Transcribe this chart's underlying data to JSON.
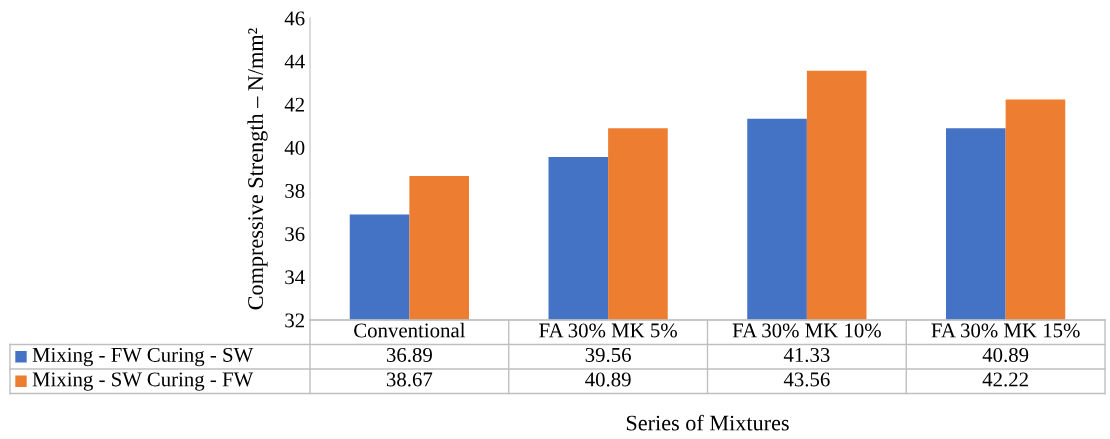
{
  "chart_data": {
    "type": "bar",
    "xlabel": "Series of Mixtures",
    "ylabel": "Compressive Strength – N/mm²",
    "categories": [
      "Conventional",
      "FA 30% MK 5%",
      "FA 30% MK 10%",
      "FA 30% MK 15%"
    ],
    "series": [
      {
        "name": "Mixing - FW Curing - SW",
        "color": "#4472c4",
        "values": [
          36.89,
          39.56,
          41.33,
          40.89
        ]
      },
      {
        "name": "Mixing - SW Curing - FW",
        "color": "#ed7d31",
        "values": [
          38.67,
          40.89,
          43.56,
          42.22
        ]
      }
    ],
    "ylim": [
      32,
      46
    ],
    "yticks": [
      32,
      34,
      36,
      38,
      40,
      42,
      44,
      46
    ],
    "grid": false,
    "data_labels": true,
    "legend": "bottom left"
  }
}
